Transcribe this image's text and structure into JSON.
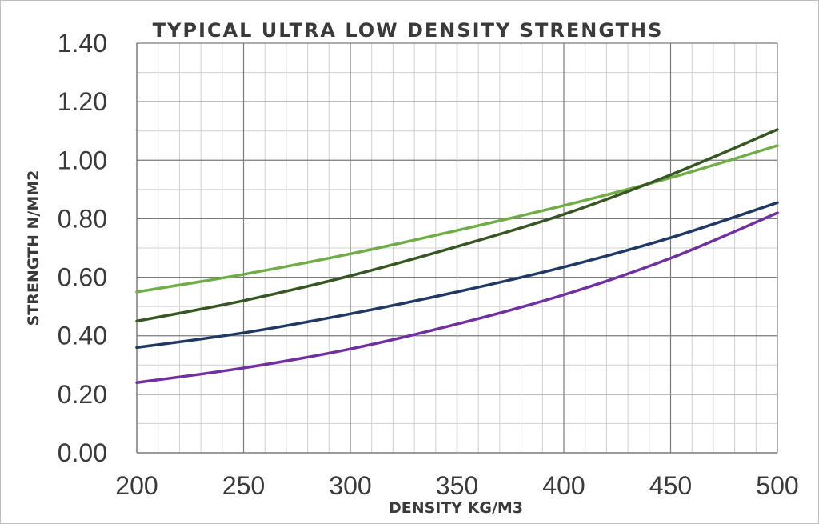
{
  "chart_data": {
    "type": "line",
    "title": "TYPICAL ULTRA LOW DENSITY STRENGTHS",
    "xlabel": "DENSITY KG/M3",
    "ylabel": "STRENGTH N/MM2",
    "xlim": [
      200,
      500
    ],
    "ylim": [
      0,
      1.4
    ],
    "x_ticks": [
      "200",
      "250",
      "300",
      "350",
      "400",
      "450",
      "500"
    ],
    "y_ticks": [
      "0.00",
      "0.20",
      "0.40",
      "0.60",
      "0.80",
      "1.00",
      "1.20",
      "1.40"
    ],
    "x_minor_step": 10,
    "y_minor_step": 0.1,
    "x_major_step": 50,
    "y_major_step": 0.2,
    "grid": true,
    "legend": "none",
    "x": [
      200,
      250,
      300,
      350,
      400,
      450,
      500
    ],
    "series": [
      {
        "color": "#70ad47",
        "values": [
          0.55,
          0.61,
          0.68,
          0.76,
          0.845,
          0.94,
          1.05
        ]
      },
      {
        "color": "#375623",
        "values": [
          0.45,
          0.52,
          0.605,
          0.705,
          0.815,
          0.95,
          1.105
        ]
      },
      {
        "color": "#203864",
        "values": [
          0.36,
          0.41,
          0.475,
          0.55,
          0.635,
          0.735,
          0.855
        ]
      },
      {
        "color": "#7030a0",
        "values": [
          0.24,
          0.29,
          0.355,
          0.44,
          0.54,
          0.665,
          0.82
        ]
      }
    ]
  }
}
